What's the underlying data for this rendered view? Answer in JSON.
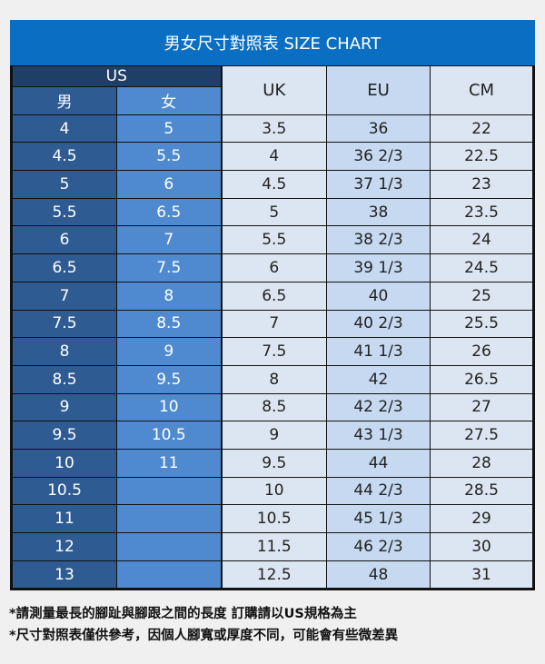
{
  "title": "男女尺寸對照表 SIZE CHART",
  "headers": {
    "us": "US",
    "men": "男",
    "women": "女",
    "uk": "UK",
    "eu": "EU",
    "cm": "CM"
  },
  "rows": [
    {
      "men": "4",
      "women": "5",
      "uk": "3.5",
      "eu": "36",
      "cm": "22"
    },
    {
      "men": "4.5",
      "women": "5.5",
      "uk": "4",
      "eu": "36 2/3",
      "cm": "22.5"
    },
    {
      "men": "5",
      "women": "6",
      "uk": "4.5",
      "eu": "37 1/3",
      "cm": "23"
    },
    {
      "men": "5.5",
      "women": "6.5",
      "uk": "5",
      "eu": "38",
      "cm": "23.5"
    },
    {
      "men": "6",
      "women": "7",
      "uk": "5.5",
      "eu": "38 2/3",
      "cm": "24"
    },
    {
      "men": "6.5",
      "women": "7.5",
      "uk": "6",
      "eu": "39 1/3",
      "cm": "24.5"
    },
    {
      "men": "7",
      "women": "8",
      "uk": "6.5",
      "eu": "40",
      "cm": "25"
    },
    {
      "men": "7.5",
      "women": "8.5",
      "uk": "7",
      "eu": "40 2/3",
      "cm": "25.5"
    },
    {
      "men": "8",
      "women": "9",
      "uk": "7.5",
      "eu": "41 1/3",
      "cm": "26"
    },
    {
      "men": "8.5",
      "women": "9.5",
      "uk": "8",
      "eu": "42",
      "cm": "26.5"
    },
    {
      "men": "9",
      "women": "10",
      "uk": "8.5",
      "eu": "42 2/3",
      "cm": "27"
    },
    {
      "men": "9.5",
      "women": "10.5",
      "uk": "9",
      "eu": "43 1/3",
      "cm": "27.5"
    },
    {
      "men": "10",
      "women": "11",
      "uk": "9.5",
      "eu": "44",
      "cm": "28"
    },
    {
      "men": "10.5",
      "women": "",
      "uk": "10",
      "eu": "44 2/3",
      "cm": "28.5"
    },
    {
      "men": "11",
      "women": "",
      "uk": "10.5",
      "eu": "45 1/3",
      "cm": "29"
    },
    {
      "men": "12",
      "women": "",
      "uk": "11.5",
      "eu": "46 2/3",
      "cm": "30"
    },
    {
      "men": "13",
      "women": "",
      "uk": "12.5",
      "eu": "48",
      "cm": "31"
    }
  ],
  "notes": [
    "*請測量最長的腳趾與腳跟之間的長度 訂購請以US規格為主",
    "*尺寸對照表僅供參考，因個人腳寬或厚度不同，可能會有些微差異"
  ],
  "colors": {
    "title_bg": "#0a6fc2",
    "us_header": "#1f3f66",
    "men_col": "#2f5b93",
    "women_col": "#4f8ad0",
    "uk_cm_col": "#dce6f2",
    "eu_col": "#c6d9f0"
  }
}
